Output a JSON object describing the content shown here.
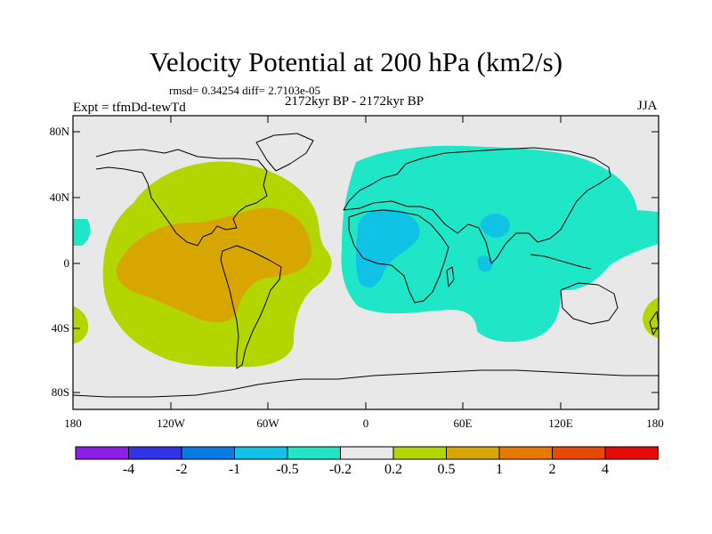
{
  "header": {
    "title": "Velocity Potential at 200 hPa (km2/s)",
    "stats": "rmsd= 0.34254 diff= 2.7103e-05",
    "period": "2172kyr BP - 2172kyr BP",
    "experiment": "Expt = tfmDd-tewTd",
    "season": "JJA"
  },
  "map": {
    "y_tick_labels": [
      "80N",
      "40N",
      "0",
      "40S",
      "80S"
    ],
    "x_tick_labels": [
      "180",
      "120W",
      "60W",
      "0",
      "60E",
      "120E",
      "180"
    ],
    "background_color": "#e8e8e8",
    "anomaly_fields": [
      {
        "name": "americas-positive-outer",
        "sign": "positive",
        "level": "0.2 to 0.5",
        "color": "#b4d600"
      },
      {
        "name": "americas-positive-core",
        "sign": "positive",
        "level": "0.5 to 1",
        "color": "#d8a600"
      },
      {
        "name": "eurasia-negative-outer",
        "sign": "negative",
        "level": "-0.5 to -0.2",
        "color": "#1ee6c6"
      },
      {
        "name": "africa-negative-core",
        "sign": "negative",
        "level": "-1 to -0.5",
        "color": "#10c2e6"
      }
    ]
  },
  "colorbar": {
    "colors": [
      "#8d1ee8",
      "#3232e6",
      "#0a7ae6",
      "#10c2e6",
      "#1ee6c6",
      "#e8e8e8",
      "#b4d600",
      "#d8a600",
      "#e67a00",
      "#e64a00",
      "#e60a0a"
    ],
    "labels": [
      "-4",
      "-2",
      "-1",
      "-0.5",
      "-0.2",
      "0.2",
      "0.5",
      "1",
      "2",
      "4"
    ]
  }
}
